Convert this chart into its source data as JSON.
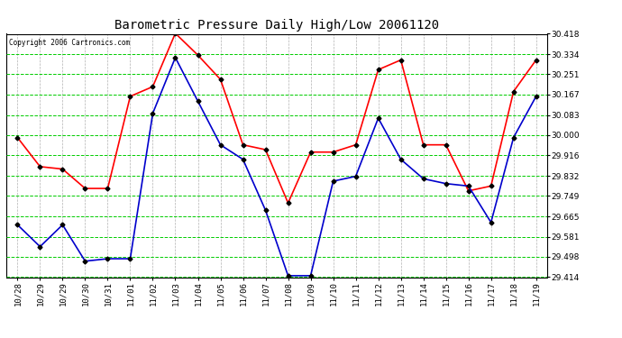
{
  "title": "Barometric Pressure Daily High/Low 20061120",
  "copyright": "Copyright 2006 Cartronics.com",
  "x_labels": [
    "10/28",
    "10/29",
    "10/29",
    "10/30",
    "10/31",
    "11/01",
    "11/02",
    "11/03",
    "11/04",
    "11/05",
    "11/06",
    "11/07",
    "11/08",
    "11/09",
    "11/10",
    "11/11",
    "11/12",
    "11/13",
    "11/14",
    "11/15",
    "11/16",
    "11/17",
    "11/18",
    "11/19"
  ],
  "high_values": [
    29.99,
    29.87,
    29.86,
    29.78,
    29.78,
    30.16,
    30.2,
    30.42,
    30.33,
    30.23,
    29.96,
    29.94,
    29.72,
    29.93,
    29.93,
    29.96,
    30.27,
    30.31,
    29.96,
    29.96,
    29.77,
    29.79,
    30.18,
    30.31
  ],
  "low_values": [
    29.63,
    29.54,
    29.63,
    29.48,
    29.49,
    29.49,
    30.09,
    30.32,
    30.14,
    29.96,
    29.9,
    29.69,
    29.42,
    29.42,
    29.81,
    29.83,
    30.07,
    29.9,
    29.82,
    29.8,
    29.79,
    29.64,
    29.99,
    30.16
  ],
  "high_color": "#ff0000",
  "low_color": "#0000cc",
  "bg_color": "#ffffff",
  "plot_bg_color": "#ffffff",
  "grid_color": "#00cc00",
  "title_color": "#000000",
  "copyright_color": "#000000",
  "y_min": 29.414,
  "y_max": 30.418,
  "y_ticks": [
    29.414,
    29.498,
    29.581,
    29.665,
    29.749,
    29.832,
    29.916,
    30.0,
    30.083,
    30.167,
    30.251,
    30.334,
    30.418
  ],
  "marker": "D",
  "marker_size": 2.5,
  "line_width": 1.2,
  "title_fontsize": 10,
  "tick_fontsize": 6.5,
  "copyright_fontsize": 5.5
}
